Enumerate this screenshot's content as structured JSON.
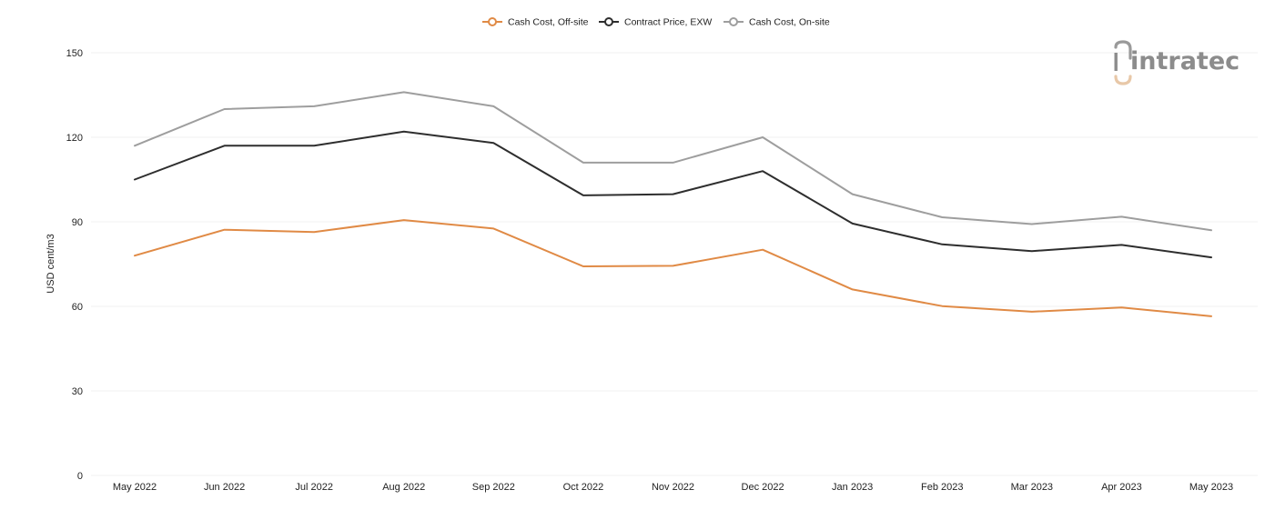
{
  "chart_data": {
    "type": "line",
    "categories": [
      "May 2022",
      "Jun 2022",
      "Jul 2022",
      "Aug 2022",
      "Sep 2022",
      "Oct 2022",
      "Nov 2022",
      "Dec 2022",
      "Jan 2023",
      "Feb 2023",
      "Mar 2023",
      "Apr 2023",
      "May 2023"
    ],
    "series": [
      {
        "name": "Cash Cost, Off-site",
        "color": "#e08a45",
        "values": [
          78,
          87.2,
          86.4,
          90.6,
          87.6,
          74.2,
          74.4,
          80.1,
          66,
          60.1,
          58.1,
          59.6,
          56.5
        ]
      },
      {
        "name": "Contract Price, EXW",
        "color": "#2e2e2e",
        "values": [
          105,
          117,
          117,
          122,
          118,
          99.4,
          99.8,
          108,
          89.4,
          82,
          79.6,
          81.8,
          77.4
        ]
      },
      {
        "name": "Cash Cost, On-site",
        "color": "#9e9e9e",
        "values": [
          117,
          130,
          131,
          136,
          131,
          111,
          111,
          120,
          99.8,
          91.6,
          89.2,
          91.8,
          87
        ]
      }
    ],
    "ylabel": "USD cent/m3",
    "ylim": [
      0,
      150
    ],
    "yticks": [
      0,
      30,
      60,
      90,
      120,
      150
    ],
    "grid": true,
    "legend": "top-center"
  },
  "logo": {
    "text": "intratec"
  }
}
